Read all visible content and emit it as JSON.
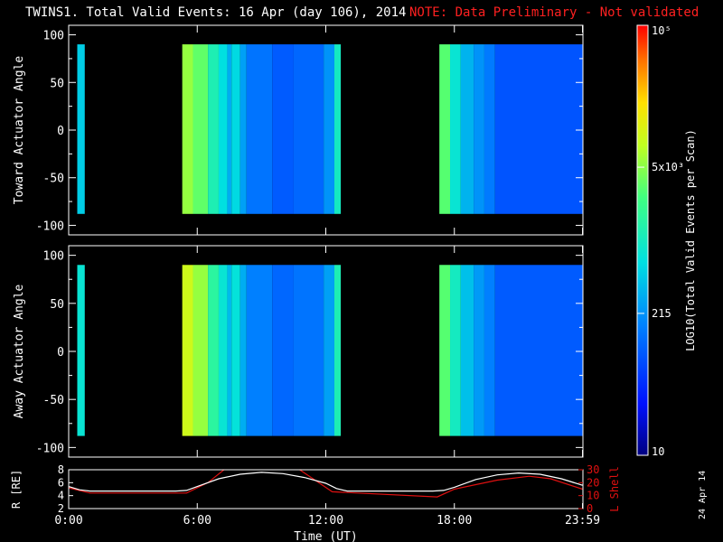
{
  "header": {
    "title": "TWINS1. Total Valid Events: 16 Apr (day 106), 2014",
    "note": "NOTE: Data Preliminary - Not validated"
  },
  "stamp": "24 Apr 14",
  "colors": {
    "note": "#ff2020",
    "r_line": "#ffffff",
    "lshell_line": "#e01010",
    "background": "#000000"
  },
  "chart_data": [
    {
      "type": "heatmap",
      "ylabel": "Toward Actuator Angle",
      "ylim": [
        -110,
        110
      ],
      "yticks": [
        100,
        50,
        0,
        -50,
        -100
      ],
      "xlim_hours": [
        0,
        24
      ],
      "angle_range": [
        -88,
        90
      ],
      "scans": [
        {
          "t0": 0.4,
          "t1": 0.75,
          "level": 0.42
        },
        {
          "t0": 5.3,
          "t1": 5.8,
          "level": 0.68
        },
        {
          "t0": 5.8,
          "t1": 6.5,
          "level": 0.63
        },
        {
          "t0": 6.5,
          "t1": 7.0,
          "level": 0.52
        },
        {
          "t0": 7.0,
          "t1": 7.4,
          "level": 0.45
        },
        {
          "t0": 7.4,
          "t1": 7.6,
          "level": 0.37
        },
        {
          "t0": 7.6,
          "t1": 8.0,
          "level": 0.44
        },
        {
          "t0": 8.0,
          "t1": 8.3,
          "level": 0.35
        },
        {
          "t0": 8.3,
          "t1": 9.5,
          "level": 0.28
        },
        {
          "t0": 9.5,
          "t1": 10.5,
          "level": 0.24
        },
        {
          "t0": 10.5,
          "t1": 11.9,
          "level": 0.26
        },
        {
          "t0": 11.9,
          "t1": 12.4,
          "level": 0.33
        },
        {
          "t0": 12.4,
          "t1": 12.7,
          "level": 0.5
        },
        {
          "t0": 17.3,
          "t1": 17.8,
          "level": 0.62
        },
        {
          "t0": 17.8,
          "t1": 18.3,
          "level": 0.47
        },
        {
          "t0": 18.3,
          "t1": 18.9,
          "level": 0.38
        },
        {
          "t0": 18.9,
          "t1": 19.4,
          "level": 0.33
        },
        {
          "t0": 19.4,
          "t1": 19.9,
          "level": 0.29
        },
        {
          "t0": 19.9,
          "t1": 23.98,
          "level": 0.23
        }
      ]
    },
    {
      "type": "heatmap",
      "ylabel": "Away Actuator Angle",
      "ylim": [
        -110,
        110
      ],
      "yticks": [
        100,
        50,
        0,
        -50,
        -100
      ],
      "xlim_hours": [
        0,
        24
      ],
      "angle_range": [
        -88,
        90
      ],
      "scans": [
        {
          "t0": 0.4,
          "t1": 0.75,
          "level": 0.47
        },
        {
          "t0": 5.3,
          "t1": 5.8,
          "level": 0.74
        },
        {
          "t0": 5.8,
          "t1": 6.5,
          "level": 0.68
        },
        {
          "t0": 6.5,
          "t1": 7.0,
          "level": 0.55
        },
        {
          "t0": 7.0,
          "t1": 7.4,
          "level": 0.47
        },
        {
          "t0": 7.4,
          "t1": 7.6,
          "level": 0.39
        },
        {
          "t0": 7.6,
          "t1": 8.0,
          "level": 0.46
        },
        {
          "t0": 8.0,
          "t1": 8.3,
          "level": 0.37
        },
        {
          "t0": 8.3,
          "t1": 9.5,
          "level": 0.3
        },
        {
          "t0": 9.5,
          "t1": 10.5,
          "level": 0.26
        },
        {
          "t0": 10.5,
          "t1": 11.9,
          "level": 0.28
        },
        {
          "t0": 11.9,
          "t1": 12.4,
          "level": 0.35
        },
        {
          "t0": 12.4,
          "t1": 12.7,
          "level": 0.52
        },
        {
          "t0": 17.3,
          "t1": 17.8,
          "level": 0.62
        },
        {
          "t0": 17.8,
          "t1": 18.3,
          "level": 0.5
        },
        {
          "t0": 18.3,
          "t1": 18.9,
          "level": 0.4
        },
        {
          "t0": 18.9,
          "t1": 19.4,
          "level": 0.34
        },
        {
          "t0": 19.4,
          "t1": 19.9,
          "level": 0.3
        },
        {
          "t0": 19.9,
          "t1": 23.98,
          "level": 0.24
        }
      ]
    },
    {
      "type": "line",
      "xlabel": "Time (UT)",
      "ylabel": "R [RE]",
      "y2label": "L Shell",
      "ylim": [
        2,
        8
      ],
      "y2lim": [
        0,
        30
      ],
      "yticks": [
        2,
        4,
        6,
        8
      ],
      "y2ticks": [
        0,
        10,
        20,
        30
      ],
      "xticks": [
        "0:00",
        "6:00",
        "12:00",
        "18:00",
        "23:59"
      ],
      "xtick_hours": [
        0,
        6,
        12,
        18,
        23.98
      ],
      "series": [
        {
          "name": "R [RE]",
          "x": [
            0,
            0.5,
            1,
            2,
            3,
            4,
            5,
            5.5,
            6,
            7,
            8,
            9,
            10,
            11,
            12,
            12.5,
            13,
            14,
            15,
            16,
            17,
            17.5,
            18,
            19,
            20,
            21,
            22,
            23,
            23.98
          ],
          "y": [
            5.4,
            4.9,
            4.7,
            4.7,
            4.7,
            4.7,
            4.7,
            4.8,
            5.4,
            6.6,
            7.3,
            7.6,
            7.4,
            6.8,
            5.9,
            5.1,
            4.7,
            4.7,
            4.7,
            4.7,
            4.7,
            4.8,
            5.3,
            6.5,
            7.2,
            7.5,
            7.3,
            6.6,
            5.6
          ]
        },
        {
          "name": "L Shell",
          "axis": "y2",
          "x": [
            0,
            1,
            5.5,
            6.5,
            7.4,
            10.6,
            12.3,
            17.2,
            18,
            20,
            21.5,
            22.5,
            23.98
          ],
          "y": [
            16,
            12,
            12,
            20,
            32,
            32,
            13,
            9,
            15,
            22,
            25,
            23,
            15
          ]
        }
      ]
    }
  ],
  "colorbar": {
    "label": "LOG10(Total Valid Events per Scan)",
    "ticks": [
      {
        "label": "10",
        "frac": 0.0
      },
      {
        "label": "215",
        "frac": 0.33
      },
      {
        "label": "5x10³",
        "frac": 0.67
      },
      {
        "label": "10⁵",
        "frac": 1.0
      }
    ]
  }
}
